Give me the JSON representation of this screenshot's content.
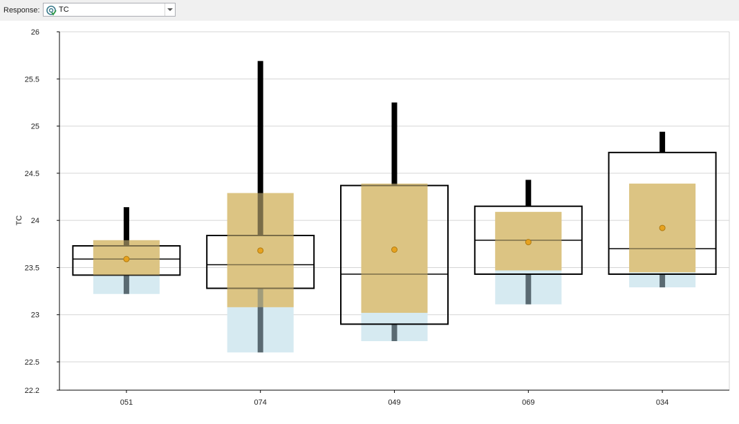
{
  "toolbar": {
    "response_label": "Response:",
    "response_value": "TC",
    "response_icon": "target-check-icon"
  },
  "chart_data": {
    "type": "box",
    "ylabel": "TC",
    "xlabel": "",
    "ylim": [
      22.2,
      26
    ],
    "yticks": [
      "26",
      "25.5",
      "25",
      "24.5",
      "24",
      "23.5",
      "23",
      "22.5",
      "22.2"
    ],
    "grid": "horizontal",
    "categories": [
      "051",
      "074",
      "049",
      "069",
      "034"
    ],
    "boxes": [
      {
        "category": "051",
        "q1": 23.42,
        "median": 23.59,
        "q3": 23.73,
        "whisker_low": 23.22,
        "whisker_high": 24.14,
        "mean": 23.59,
        "ci_mean_low": 23.22,
        "ci_mean_high": 23.79,
        "ci_split": 23.42
      },
      {
        "category": "074",
        "q1": 23.28,
        "median": 23.53,
        "q3": 23.84,
        "whisker_low": 22.6,
        "whisker_high": 25.69,
        "mean": 23.68,
        "ci_mean_low": 22.6,
        "ci_mean_high": 24.29,
        "ci_split": 23.08
      },
      {
        "category": "049",
        "q1": 22.9,
        "median": 23.43,
        "q3": 24.37,
        "whisker_low": 22.72,
        "whisker_high": 25.25,
        "mean": 23.69,
        "ci_mean_low": 22.72,
        "ci_mean_high": 24.39,
        "ci_split": 23.02
      },
      {
        "category": "069",
        "q1": 23.43,
        "median": 23.79,
        "q3": 24.15,
        "whisker_low": 23.11,
        "whisker_high": 24.43,
        "mean": 23.77,
        "ci_mean_low": 23.11,
        "ci_mean_high": 24.09,
        "ci_split": 23.47
      },
      {
        "category": "034",
        "q1": 23.43,
        "median": 23.7,
        "q3": 24.72,
        "whisker_low": 23.29,
        "whisker_high": 24.94,
        "mean": 23.92,
        "ci_mean_low": 23.29,
        "ci_mean_high": 24.39,
        "ci_split": 23.45
      }
    ],
    "colors": {
      "ci_upper": "#dcc483",
      "ci_lower": "#d6eaf1",
      "mean_marker": "#e6a220",
      "mean_marker_stroke": "#b07a10",
      "box": "#000000",
      "whisker_dark": "#5a6a72",
      "grid": "#d4d4d4"
    }
  }
}
